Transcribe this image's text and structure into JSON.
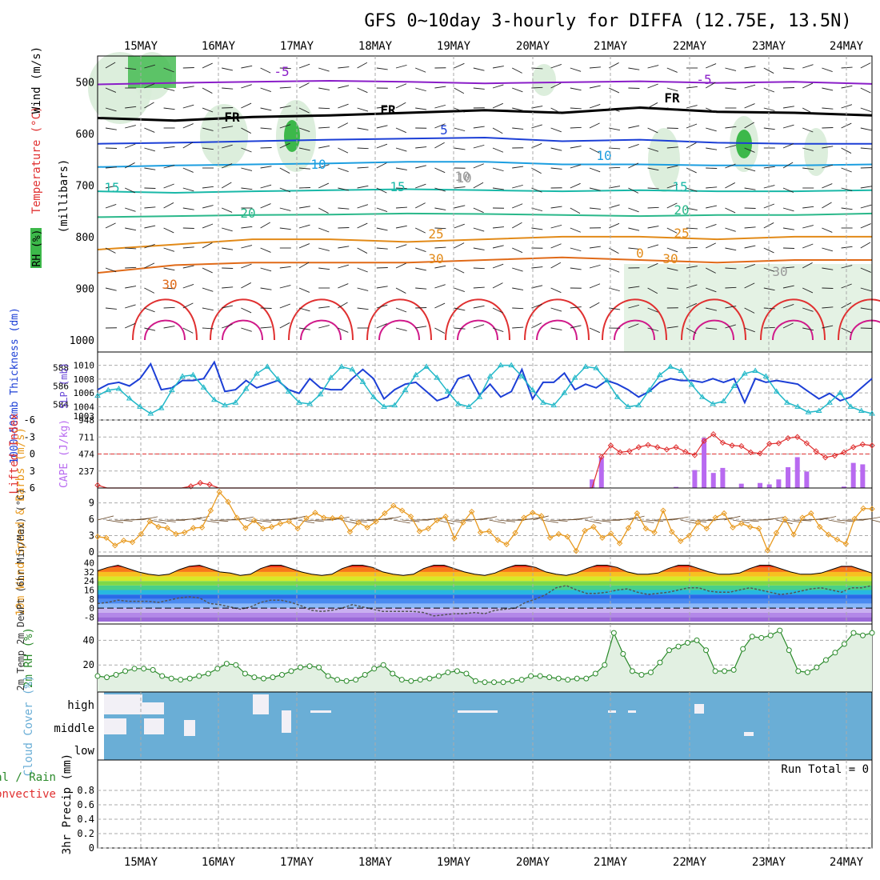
{
  "title": "GFS 0~10day 3-hourly for DIFFA (12.75E, 13.5N)",
  "colors": {
    "rh": "#3cb84a",
    "rh_light": "#d8ecd8",
    "temp_purple": "#8a1ec8",
    "temp_blue": "#1c3fd6",
    "temp_sky": "#1c9ee0",
    "temp_teal": "#19b8a8",
    "temp_green": "#2ab88a",
    "temp_orange": "#e28a18",
    "temp_red": "#e03030",
    "temp_magenta": "#d01a8a",
    "thick": "#1c3fd6",
    "slp": "#22b8c8",
    "cape": "#b86af0",
    "li": "#e03030",
    "wind": "#e89a20",
    "barb": "#6a4a2a",
    "cloud": "#6aaed6",
    "rh2m": "#2a8a2a",
    "grid": "#aaaaaa"
  },
  "chart_data": [
    {
      "panel": "upper-air",
      "type": "line",
      "title": "GFS 0~10day 3-hourly for DIFFA (12.75E, 13.5N)",
      "ylabel_parts": [
        "RH (%)",
        "Temperature (°C)",
        "Wind (m/s)",
        "(millibars)"
      ],
      "x_ticks": [
        "15MAY",
        "16MAY",
        "17MAY",
        "18MAY",
        "19MAY",
        "20MAY",
        "21MAY",
        "22MAY",
        "23MAY",
        "24MAY"
      ],
      "y_ticks": [
        "500",
        "600",
        "700",
        "800",
        "900",
        "1000"
      ],
      "ylim": [
        1000,
        450
      ],
      "isotherms": [
        {
          "label": "-5",
          "p": [
            505,
            502,
            500,
            498,
            500,
            503,
            501,
            499,
            502,
            500,
            504
          ]
        },
        {
          "label": "FR",
          "p": [
            570,
            575,
            568,
            565,
            560,
            555,
            560,
            550,
            558,
            560,
            565
          ]
        },
        {
          "label": "5",
          "p": [
            620,
            618,
            615,
            612,
            610,
            608,
            615,
            612,
            618,
            620,
            620
          ]
        },
        {
          "label": "10",
          "p": [
            665,
            662,
            660,
            658,
            655,
            655,
            660,
            660,
            662,
            662,
            660
          ]
        },
        {
          "label": "15",
          "p": [
            712,
            715,
            712,
            710,
            708,
            710,
            712,
            710,
            712,
            712,
            710
          ]
        },
        {
          "label": "20",
          "p": [
            762,
            760,
            758,
            757,
            755,
            756,
            758,
            760,
            758,
            758,
            755
          ]
        },
        {
          "label": "25",
          "p": [
            825,
            815,
            805,
            805,
            810,
            805,
            800,
            800,
            805,
            800,
            800
          ]
        },
        {
          "label": "30",
          "p": [
            870,
            855,
            850,
            850,
            850,
            845,
            840,
            845,
            850,
            845,
            845
          ]
        }
      ],
      "contour_labels": [
        "-5",
        "-5",
        "FR",
        "FR",
        "FR",
        "5",
        "10",
        "10",
        "10",
        "15",
        "15",
        "15",
        "20",
        "20",
        "25",
        "25",
        "30",
        "30",
        "30",
        "0",
        "30",
        "10"
      ]
    },
    {
      "panel": "thickness-slp",
      "type": "line",
      "ylabel_left": "1000~500mb Thickness (dm)",
      "ylabel_right": "SLP (mb)",
      "y_ticks_left": [
        "584",
        "586",
        "588"
      ],
      "y_ticks_right": [
        "1004",
        "1006",
        "1008",
        "1010"
      ],
      "y_extra_ticks": [
        "1003"
      ],
      "ylim_left": [
        583,
        589
      ],
      "ylim_right": [
        1003,
        1011
      ],
      "series": [
        {
          "name": "1000~500mb Thickness (dm)",
          "values": [
            585.6,
            586.2,
            586.4,
            586.0,
            586.8,
            588.4,
            585.6,
            585.8,
            586.6,
            586.6,
            586.8,
            588.6,
            585.4,
            585.6,
            586.6,
            585.8,
            586.2,
            586.6,
            585.6,
            585.2,
            586.8,
            585.8,
            585.6,
            585.6,
            586.8,
            587.8,
            586.8,
            584.6,
            585.6,
            586.2,
            586.4,
            585.4,
            584.4,
            584.8,
            586.8,
            587.2,
            585.0,
            586.2,
            584.8,
            585.4,
            587.8,
            584.6,
            586.4,
            586.4,
            587.4,
            585.6,
            586.2,
            585.8,
            586.6,
            586.2,
            585.6,
            584.8,
            585.4,
            586.4,
            586.8,
            586.6,
            586.6,
            586.4,
            586.8,
            586.4,
            586.8,
            584.2,
            586.8,
            586.4,
            586.6,
            586.4,
            586.2,
            585.4,
            584.6,
            585.2,
            584.4,
            584.8,
            585.8,
            586.8
          ]
        },
        {
          "name": "SLP (mb)",
          "values": [
            1005.6,
            1006.4,
            1006.6,
            1005.2,
            1004.0,
            1003.0,
            1003.8,
            1006.4,
            1008.4,
            1008.6,
            1006.8,
            1005.0,
            1004.2,
            1004.6,
            1006.6,
            1008.8,
            1009.8,
            1008.0,
            1006.2,
            1004.6,
            1004.4,
            1005.8,
            1008.2,
            1009.8,
            1009.4,
            1007.6,
            1005.4,
            1004.0,
            1004.2,
            1006.4,
            1008.6,
            1009.8,
            1008.2,
            1006.2,
            1004.4,
            1004.0,
            1005.4,
            1008.4,
            1010.0,
            1010.0,
            1008.4,
            1006.4,
            1004.6,
            1004.2,
            1006.0,
            1008.2,
            1009.8,
            1009.6,
            1007.8,
            1005.4,
            1004.0,
            1004.2,
            1006.4,
            1008.6,
            1009.8,
            1009.2,
            1007.2,
            1005.4,
            1004.4,
            1004.8,
            1007.0,
            1008.8,
            1009.2,
            1008.4,
            1006.2,
            1004.6,
            1004.0,
            1003.2,
            1003.4,
            1004.6,
            1006.0,
            1004.0,
            1003.4,
            1003.0
          ]
        }
      ]
    },
    {
      "panel": "stability",
      "type": "bar",
      "ylabel_left": "Lifted Index",
      "ylabel_right": "CAPE (J/kg)",
      "y_ticks_left": [
        "-6",
        "-3",
        "0",
        "3",
        "6"
      ],
      "y_ticks_right": [
        "948",
        "711",
        "474",
        "237"
      ],
      "ylim_left": [
        -6,
        6
      ],
      "ylim_right": [
        0,
        948
      ],
      "series": [
        {
          "name": "CAPE (J/kg)",
          "start_index": 53,
          "values": [
            120,
            430,
            0,
            0,
            0,
            0,
            0,
            0,
            0,
            15,
            0,
            250,
            700,
            210,
            280,
            0,
            60,
            0,
            70,
            50,
            120,
            290,
            430,
            230,
            0,
            0,
            0,
            20,
            350,
            330
          ]
        },
        {
          "name": "Lifted Index",
          "values": [
            5.5,
            6,
            6,
            6,
            6,
            6,
            6,
            6,
            6,
            6,
            5.7,
            5.1,
            5.4,
            6,
            6,
            6,
            6,
            6,
            6,
            6,
            6,
            6,
            6,
            6,
            6,
            6,
            6,
            6,
            6,
            6,
            6,
            6,
            6,
            6,
            6,
            6,
            6,
            6,
            6,
            6,
            6,
            6,
            6,
            6,
            6,
            6,
            6,
            6,
            6,
            6,
            6,
            6,
            6,
            6,
            0.5,
            -1.5,
            -0.3,
            -0.5,
            -1.2,
            -1.6,
            -1.2,
            -0.8,
            -1.2,
            -0.4,
            0.2,
            -2.3,
            -3.5,
            -2.0,
            -1.5,
            -1.4,
            -0.3,
            -0.1,
            -1.8,
            -1.9,
            -2.8,
            -3.0,
            -1.9,
            -0.5,
            0.6,
            0.3,
            -0.3,
            -1.2,
            -1.7,
            -1.5
          ]
        }
      ]
    },
    {
      "panel": "wind10m",
      "type": "line",
      "ylabel": "10m Wind Speed & Barbs (m/s)",
      "y_ticks": [
        "0",
        "3",
        "6",
        "9"
      ],
      "ylim": [
        0,
        11
      ],
      "series": [
        {
          "name": "10m Wind Speed",
          "values": [
            2.8,
            2.6,
            1.2,
            2.1,
            1.8,
            3.3,
            5.6,
            4.6,
            4.4,
            3.3,
            3.6,
            4.4,
            4.5,
            7.6,
            11,
            9.2,
            6.3,
            4.4,
            5.8,
            4.3,
            4.6,
            5.2,
            5.6,
            4.3,
            6.2,
            7.2,
            6.3,
            6.2,
            6.3,
            3.7,
            5.4,
            4.5,
            5.6,
            7.1,
            8.5,
            7.6,
            6.5,
            3.8,
            4.3,
            5.8,
            6.5,
            2.5,
            5.4,
            7.4,
            3.6,
            3.8,
            2.2,
            1.4,
            3.5,
            6.3,
            7.2,
            6.6,
            2.6,
            3.3,
            2.8,
            0.2,
            3.9,
            4.6,
            2.6,
            3.4,
            1.6,
            4.4,
            7.1,
            4.3,
            3.6,
            7.6,
            3.7,
            2.0,
            3.0,
            5.4,
            4.3,
            6.3,
            7.1,
            4.5,
            5.2,
            4.6,
            4.3,
            0.3,
            3.5,
            6.1,
            3.2,
            6.3,
            7.1,
            4.6,
            3.2,
            2.3,
            1.5,
            6.1,
            8.0,
            7.9
          ]
        }
      ]
    },
    {
      "panel": "temp2m",
      "type": "area",
      "ylabel": "2m Temp 2m DewPt (6hr Min/Max) (°C)",
      "y_ticks": [
        "40",
        "32",
        "24",
        "16",
        "8",
        "0",
        "-8"
      ],
      "ylim": [
        -12,
        44
      ],
      "series": [
        {
          "name": "2m Temp",
          "values": [
            33,
            36,
            38,
            35,
            32,
            30,
            29,
            30,
            34,
            37,
            38,
            35,
            32,
            31,
            29,
            30,
            35,
            38,
            38,
            35,
            32,
            30,
            29,
            30,
            35,
            38,
            38,
            36,
            32,
            30,
            29,
            30,
            35,
            38,
            38,
            35,
            32,
            30,
            29,
            31,
            35,
            38,
            38,
            36,
            32,
            30,
            29,
            31,
            35,
            38,
            38,
            36,
            32,
            30,
            30,
            31,
            35,
            38,
            38,
            35,
            32,
            30,
            30,
            31,
            35,
            38,
            38,
            35,
            32,
            30,
            30,
            31,
            34,
            37,
            37,
            34,
            31
          ]
        },
        {
          "name": "2m DewPt",
          "values": [
            4,
            5,
            7,
            6,
            6,
            6,
            5,
            7,
            9,
            10,
            9,
            4,
            3,
            1,
            -1,
            1,
            5,
            7,
            7,
            5,
            2,
            -2,
            -3,
            -2,
            0,
            3,
            1,
            -1,
            -3,
            -3,
            -3,
            -3,
            -4,
            -7,
            -6,
            -5,
            -5,
            -4,
            -5,
            -2,
            -1,
            0,
            5,
            8,
            12,
            18,
            20,
            16,
            13,
            13,
            14,
            16,
            17,
            14,
            12,
            13,
            14,
            16,
            18,
            18,
            15,
            14,
            14,
            16,
            18,
            16,
            14,
            12,
            13,
            15,
            17,
            18,
            16,
            14,
            18,
            18,
            20
          ]
        }
      ]
    },
    {
      "panel": "rh2m",
      "type": "area",
      "ylabel": "2m RH (%)",
      "y_ticks": [
        "20",
        "40"
      ],
      "ylim": [
        0,
        50
      ],
      "series": [
        {
          "name": "2m RH",
          "values": [
            11,
            10,
            12,
            15,
            17,
            17,
            16,
            11,
            9,
            8,
            9,
            11,
            13,
            17,
            21,
            20,
            13,
            10,
            9,
            10,
            12,
            15,
            18,
            19,
            18,
            11,
            8,
            7,
            8,
            12,
            17,
            20,
            13,
            8,
            7,
            8,
            9,
            11,
            14,
            15,
            13,
            7,
            6,
            6,
            6,
            7,
            8,
            11,
            11,
            10,
            9,
            8,
            9,
            9,
            13,
            20,
            46,
            29,
            15,
            12,
            14,
            22,
            32,
            35,
            38,
            40,
            32,
            15,
            15,
            16,
            33,
            43,
            42,
            44,
            48,
            32,
            15,
            14,
            18,
            24,
            30,
            37,
            46,
            44,
            46
          ]
        }
      ]
    },
    {
      "panel": "cloud",
      "type": "heatmap",
      "ylabel": "Cloud Cover (%)",
      "y_ticks": [
        "high",
        "middle",
        "low"
      ]
    },
    {
      "panel": "precip",
      "type": "bar",
      "ylabel_parts": [
        "Total / Rain",
        "Convective",
        "3hr Precip (mm)"
      ],
      "y_ticks": [
        "0",
        "0.2",
        "0.4",
        "0.6",
        "0.8"
      ],
      "ylim": [
        0,
        1
      ],
      "annotation": "Run Total = 0",
      "values": []
    }
  ]
}
